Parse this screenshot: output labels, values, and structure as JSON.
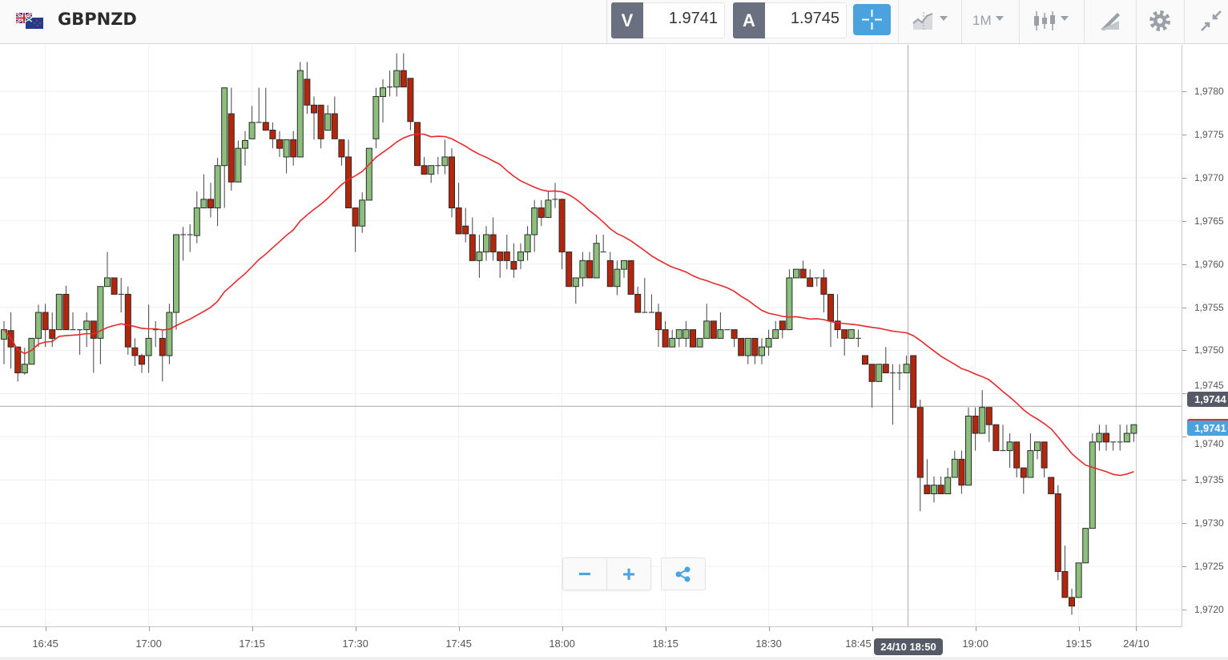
{
  "header": {
    "symbol": "GBPNZD",
    "sell": {
      "label": "V",
      "price": "1.9741"
    },
    "buy": {
      "label": "A",
      "price": "1.9745"
    },
    "timeframe": "1M",
    "icons": [
      "gb-nz-flag-icon",
      "crosshair-icon",
      "chart-type-icon",
      "candlestick-icon",
      "drawing-tools-icon",
      "gear-icon",
      "collapse-icon"
    ]
  },
  "price_axis": {
    "labels": [
      "1,9780",
      "1,9775",
      "1,9770",
      "1,9765",
      "1,9760",
      "1,9755",
      "1,9750",
      "1,9745",
      "1,9740",
      "1,9735",
      "1,9730",
      "1,9725",
      "1,9720"
    ],
    "crosshair_label": "1,9744",
    "current_price_label": "1,9741"
  },
  "time_axis": {
    "ticks": [
      {
        "time": "16:45",
        "label": "16:45"
      },
      {
        "time": "17:00",
        "label": "17:00"
      },
      {
        "time": "17:15",
        "label": "17:15"
      },
      {
        "time": "17:30",
        "label": "17:30"
      },
      {
        "time": "17:45",
        "label": "17:45"
      },
      {
        "time": "18:00",
        "label": "18:00"
      },
      {
        "time": "18:15",
        "label": "18:15"
      },
      {
        "time": "18:30",
        "label": "18:30"
      },
      {
        "time": "18:45",
        "label": "18:45"
      },
      {
        "time": "19:00",
        "label": "19:00"
      },
      {
        "time": "19:15",
        "label": "19:15"
      },
      {
        "time": "19:23",
        "label": "24/10"
      }
    ],
    "crosshair_label": "24/10 18:50"
  },
  "controls": {
    "zoom_out": "−",
    "zoom_in": "+",
    "share_icon": "share-icon"
  },
  "colors": {
    "up": "#8dbf7c",
    "down": "#b3260c",
    "ma": "#e8282b",
    "accent": "#4aa3df",
    "crosshair_badge": "#565a66",
    "current_badge": "#4aa3df"
  },
  "chart_data": {
    "type": "candlestick",
    "symbol": "GBPNZD",
    "interval": "1M",
    "ylim": [
      1.9715,
      1.9786
    ],
    "grid": true,
    "crosshair": {
      "time": "18:50",
      "price": 1.9744
    },
    "current_price": 1.9741,
    "overlay": {
      "type": "moving-average",
      "color": "#e8282b"
    },
    "columns": [
      "time",
      "open",
      "high",
      "low",
      "close"
    ],
    "candles": [
      [
        "16:39",
        1.97513,
        1.97534,
        1.97484,
        1.97524
      ],
      [
        "16:40",
        1.97523,
        1.97544,
        1.97479,
        1.97504
      ],
      [
        "16:41",
        1.97504,
        1.97504,
        1.97464,
        1.97474
      ],
      [
        "16:42",
        1.97474,
        1.97503,
        1.97472,
        1.97484
      ],
      [
        "16:43",
        1.97484,
        1.97514,
        1.97484,
        1.97514
      ],
      [
        "16:44",
        1.97514,
        1.97553,
        1.97504,
        1.97544
      ],
      [
        "16:45",
        1.97544,
        1.97554,
        1.97504,
        1.97524
      ],
      [
        "16:46",
        1.97524,
        1.97544,
        1.97504,
        1.97514
      ],
      [
        "16:47",
        1.97524,
        1.97565,
        1.97524,
        1.97565
      ],
      [
        "16:48",
        1.97565,
        1.97575,
        1.97524,
        1.97524
      ],
      [
        "16:49",
        1.97524,
        1.97544,
        1.97524,
        1.97524
      ],
      [
        "16:50",
        1.97524,
        1.97524,
        1.97495,
        1.97524
      ],
      [
        "16:51",
        1.97524,
        1.97544,
        1.97504,
        1.97534
      ],
      [
        "16:52",
        1.97534,
        1.97534,
        1.97474,
        1.97514
      ],
      [
        "16:53",
        1.97514,
        1.97574,
        1.97484,
        1.97574
      ],
      [
        "16:54",
        1.97574,
        1.97614,
        1.97574,
        1.97584
      ],
      [
        "16:55",
        1.97584,
        1.97584,
        1.97565,
        1.97565
      ],
      [
        "16:56",
        1.97565,
        1.97584,
        1.97544,
        1.97565
      ],
      [
        "16:57",
        1.97565,
        1.97574,
        1.97495,
        1.97504
      ],
      [
        "16:58",
        1.97503,
        1.97514,
        1.97482,
        1.97494
      ],
      [
        "16:59",
        1.97494,
        1.97496,
        1.97474,
        1.97484
      ],
      [
        "17:00",
        1.97494,
        1.97553,
        1.97474,
        1.97514
      ],
      [
        "17:01",
        1.97524,
        1.97534,
        1.97504,
        1.97524
      ],
      [
        "17:02",
        1.97514,
        1.97523,
        1.97464,
        1.97494
      ],
      [
        "17:03",
        1.97494,
        1.97554,
        1.97484,
        1.97544
      ],
      [
        "17:04",
        1.97544,
        1.97634,
        1.97524,
        1.97634
      ],
      [
        "17:05",
        1.97634,
        1.97643,
        1.97604,
        1.97634
      ],
      [
        "17:06",
        1.97634,
        1.97646,
        1.97614,
        1.97634
      ],
      [
        "17:07",
        1.97633,
        1.97684,
        1.97624,
        1.97665
      ],
      [
        "17:08",
        1.97665,
        1.97704,
        1.97665,
        1.97675
      ],
      [
        "17:09",
        1.97675,
        1.97694,
        1.97654,
        1.97665
      ],
      [
        "17:10",
        1.97665,
        1.97723,
        1.97644,
        1.97714
      ],
      [
        "17:11",
        1.97714,
        1.97804,
        1.97665,
        1.97804
      ],
      [
        "17:12",
        1.97774,
        1.97804,
        1.97685,
        1.97695
      ],
      [
        "17:13",
        1.97695,
        1.97743,
        1.97695,
        1.97734
      ],
      [
        "17:14",
        1.97734,
        1.97754,
        1.97714,
        1.97743
      ],
      [
        "17:15",
        1.97745,
        1.97783,
        1.97745,
        1.97764
      ],
      [
        "17:16",
        1.97764,
        1.97804,
        1.97764,
        1.97764
      ],
      [
        "17:17",
        1.97764,
        1.97804,
        1.97755,
        1.97755
      ],
      [
        "17:18",
        1.97755,
        1.97764,
        1.97734,
        1.97745
      ],
      [
        "17:19",
        1.97744,
        1.97754,
        1.97724,
        1.97734
      ],
      [
        "17:20",
        1.97724,
        1.97744,
        1.97705,
        1.97744
      ],
      [
        "17:21",
        1.97744,
        1.97754,
        1.97714,
        1.97724
      ],
      [
        "17:22",
        1.97724,
        1.97834,
        1.97724,
        1.97824
      ],
      [
        "17:23",
        1.97814,
        1.97834,
        1.97774,
        1.97784
      ],
      [
        "17:24",
        1.97784,
        1.97794,
        1.97744,
        1.97775
      ],
      [
        "17:25",
        1.97784,
        1.97784,
        1.97734,
        1.97745
      ],
      [
        "17:26",
        1.97755,
        1.97784,
        1.97755,
        1.97774
      ],
      [
        "17:27",
        1.97774,
        1.97794,
        1.97745,
        1.97745
      ],
      [
        "17:28",
        1.97744,
        1.97744,
        1.97714,
        1.97724
      ],
      [
        "17:29",
        1.97724,
        1.97744,
        1.97665,
        1.97665
      ],
      [
        "17:30",
        1.97665,
        1.97665,
        1.97614,
        1.97644
      ],
      [
        "17:31",
        1.97644,
        1.97683,
        1.97636,
        1.97674
      ],
      [
        "17:32",
        1.97674,
        1.97734,
        1.97674,
        1.97734
      ],
      [
        "17:33",
        1.97745,
        1.97804,
        1.97734,
        1.97794
      ],
      [
        "17:34",
        1.97794,
        1.97814,
        1.97764,
        1.97804
      ],
      [
        "17:35",
        1.97805,
        1.97824,
        1.97794,
        1.97805
      ],
      [
        "17:36",
        1.97805,
        1.97844,
        1.97794,
        1.97824
      ],
      [
        "17:37",
        1.97824,
        1.97844,
        1.97805,
        1.97805
      ],
      [
        "17:38",
        1.97815,
        1.97815,
        1.97755,
        1.97765
      ],
      [
        "17:39",
        1.97764,
        1.97764,
        1.97714,
        1.97714
      ],
      [
        "17:40",
        1.97714,
        1.97724,
        1.97704,
        1.97704
      ],
      [
        "17:41",
        1.97704,
        1.97714,
        1.97694,
        1.97714
      ],
      [
        "17:42",
        1.97714,
        1.97724,
        1.97704,
        1.97714
      ],
      [
        "17:43",
        1.97714,
        1.97744,
        1.97704,
        1.97724
      ],
      [
        "17:44",
        1.97724,
        1.97734,
        1.97654,
        1.97665
      ],
      [
        "17:45",
        1.97665,
        1.97694,
        1.97635,
        1.97635
      ],
      [
        "17:46",
        1.97644,
        1.97665,
        1.97625,
        1.97635
      ],
      [
        "17:47",
        1.97634,
        1.97654,
        1.97604,
        1.97604
      ],
      [
        "17:48",
        1.97604,
        1.97634,
        1.97584,
        1.97614
      ],
      [
        "17:49",
        1.97614,
        1.97644,
        1.97604,
        1.97634
      ],
      [
        "17:50",
        1.97634,
        1.97654,
        1.97604,
        1.97614
      ],
      [
        "17:51",
        1.97614,
        1.97614,
        1.97584,
        1.97604
      ],
      [
        "17:52",
        1.97614,
        1.97634,
        1.97594,
        1.97604
      ],
      [
        "17:53",
        1.97603,
        1.97624,
        1.97584,
        1.97594
      ],
      [
        "17:54",
        1.97604,
        1.97624,
        1.97594,
        1.97614
      ],
      [
        "17:55",
        1.97614,
        1.97644,
        1.97604,
        1.97634
      ],
      [
        "17:56",
        1.97634,
        1.97674,
        1.97614,
        1.97665
      ],
      [
        "17:57",
        1.97665,
        1.97674,
        1.97644,
        1.97654
      ],
      [
        "17:58",
        1.97654,
        1.97684,
        1.97654,
        1.97674
      ],
      [
        "17:59",
        1.97675,
        1.97694,
        1.97665,
        1.97675
      ],
      [
        "18:00",
        1.97675,
        1.97675,
        1.97594,
        1.97614
      ],
      [
        "18:01",
        1.97614,
        1.97614,
        1.97574,
        1.97574
      ],
      [
        "18:02",
        1.97574,
        1.97584,
        1.97554,
        1.97584
      ],
      [
        "18:03",
        1.97584,
        1.97614,
        1.97574,
        1.97604
      ],
      [
        "18:04",
        1.97604,
        1.97614,
        1.97584,
        1.97584
      ],
      [
        "18:05",
        1.97584,
        1.97634,
        1.97584,
        1.97624
      ],
      [
        "18:06",
        1.97614,
        1.97634,
        1.97614,
        1.97614
      ],
      [
        "18:07",
        1.97604,
        1.97614,
        1.97574,
        1.97574
      ],
      [
        "18:08",
        1.97574,
        1.97604,
        1.97564,
        1.97594
      ],
      [
        "18:09",
        1.97594,
        1.97604,
        1.97584,
        1.97604
      ],
      [
        "18:10",
        1.97604,
        1.97604,
        1.97565,
        1.97565
      ],
      [
        "18:11",
        1.97565,
        1.97574,
        1.97544,
        1.97544
      ],
      [
        "18:12",
        1.97544,
        1.97584,
        1.97544,
        1.97544
      ],
      [
        "18:13",
        1.97544,
        1.97565,
        1.97544,
        1.97544
      ],
      [
        "18:14",
        1.97544,
        1.97554,
        1.97504,
        1.97524
      ],
      [
        "18:15",
        1.97524,
        1.97534,
        1.97504,
        1.97504
      ],
      [
        "18:16",
        1.97504,
        1.97524,
        1.97504,
        1.97514
      ],
      [
        "18:17",
        1.97514,
        1.97524,
        1.97504,
        1.97524
      ],
      [
        "18:18",
        1.97514,
        1.97534,
        1.97504,
        1.97524
      ],
      [
        "18:19",
        1.97524,
        1.97524,
        1.97504,
        1.97504
      ],
      [
        "18:20",
        1.97504,
        1.97514,
        1.97504,
        1.97514
      ],
      [
        "18:21",
        1.97514,
        1.97554,
        1.97514,
        1.97534
      ],
      [
        "18:22",
        1.97534,
        1.97534,
        1.97514,
        1.97514
      ],
      [
        "18:23",
        1.97514,
        1.97544,
        1.97514,
        1.97524
      ],
      [
        "18:24",
        1.97524,
        1.97524,
        1.97524,
        1.97524
      ],
      [
        "18:25",
        1.97524,
        1.97524,
        1.97504,
        1.97514
      ],
      [
        "18:26",
        1.97514,
        1.97514,
        1.97494,
        1.97494
      ],
      [
        "18:27",
        1.97494,
        1.97514,
        1.97484,
        1.97514
      ],
      [
        "18:28",
        1.97514,
        1.97514,
        1.97484,
        1.97494
      ],
      [
        "18:29",
        1.97494,
        1.97514,
        1.97484,
        1.97504
      ],
      [
        "18:30",
        1.97504,
        1.97524,
        1.97494,
        1.97514
      ],
      [
        "18:31",
        1.97514,
        1.97534,
        1.97514,
        1.97524
      ],
      [
        "18:32",
        1.97534,
        1.97534,
        1.97514,
        1.97524
      ],
      [
        "18:33",
        1.97524,
        1.97594,
        1.97524,
        1.97584
      ],
      [
        "18:34",
        1.97584,
        1.97594,
        1.97584,
        1.97594
      ],
      [
        "18:35",
        1.97594,
        1.97604,
        1.97584,
        1.97584
      ],
      [
        "18:36",
        1.97584,
        1.97594,
        1.97574,
        1.97574
      ],
      [
        "18:37",
        1.97584,
        1.97584,
        1.97574,
        1.97584
      ],
      [
        "18:38",
        1.97584,
        1.97594,
        1.97544,
        1.97565
      ],
      [
        "18:39",
        1.97565,
        1.97565,
        1.97504,
        1.97534
      ],
      [
        "18:40",
        1.97534,
        1.97565,
        1.97514,
        1.97524
      ],
      [
        "18:41",
        1.97524,
        1.97524,
        1.97494,
        1.97514
      ],
      [
        "18:42",
        1.97514,
        1.97524,
        1.97514,
        1.97524
      ],
      [
        "18:43",
        1.97514,
        1.97524,
        1.97504,
        1.97514
      ],
      [
        "18:44",
        1.97494,
        1.97494,
        1.97484,
        1.97484
      ],
      [
        "18:45",
        1.97484,
        1.97484,
        1.97434,
        1.97464
      ],
      [
        "18:46",
        1.97464,
        1.97484,
        1.97464,
        1.97484
      ],
      [
        "18:47",
        1.97484,
        1.97504,
        1.97474,
        1.97474
      ],
      [
        "18:48",
        1.97474,
        1.97484,
        1.97414,
        1.97474
      ],
      [
        "18:49",
        1.97474,
        1.97484,
        1.97454,
        1.97474
      ],
      [
        "18:50",
        1.97474,
        1.97494,
        1.97474,
        1.97484
      ],
      [
        "18:51",
        1.97494,
        1.97494,
        1.97434,
        1.97434
      ],
      [
        "18:52",
        1.97434,
        1.97443,
        1.97314,
        1.97353
      ],
      [
        "18:53",
        1.97344,
        1.97374,
        1.97334,
        1.97334
      ],
      [
        "18:54",
        1.97334,
        1.97354,
        1.97324,
        1.97344
      ],
      [
        "18:55",
        1.97344,
        1.97354,
        1.97334,
        1.97334
      ],
      [
        "18:56",
        1.97334,
        1.97364,
        1.97334,
        1.97353
      ],
      [
        "18:57",
        1.97353,
        1.97384,
        1.97353,
        1.97374
      ],
      [
        "18:58",
        1.97374,
        1.97384,
        1.97334,
        1.97344
      ],
      [
        "18:59",
        1.97344,
        1.97434,
        1.97344,
        1.97424
      ],
      [
        "19:00",
        1.97424,
        1.97434,
        1.97384,
        1.97404
      ],
      [
        "19:01",
        1.97404,
        1.97454,
        1.97404,
        1.97434
      ],
      [
        "19:02",
        1.97434,
        1.97434,
        1.97394,
        1.97414
      ],
      [
        "19:03",
        1.97414,
        1.97414,
        1.97384,
        1.97384
      ],
      [
        "19:04",
        1.97384,
        1.97414,
        1.97384,
        1.97384
      ],
      [
        "19:05",
        1.97384,
        1.97404,
        1.97364,
        1.97394
      ],
      [
        "19:06",
        1.97394,
        1.97394,
        1.97353,
        1.97364
      ],
      [
        "19:07",
        1.97364,
        1.97364,
        1.97334,
        1.97353
      ],
      [
        "19:08",
        1.97353,
        1.97404,
        1.97353,
        1.97384
      ],
      [
        "19:09",
        1.97384,
        1.97394,
        1.97374,
        1.97394
      ],
      [
        "19:10",
        1.97394,
        1.97394,
        1.97353,
        1.97364
      ],
      [
        "19:11",
        1.97353,
        1.97353,
        1.97334,
        1.97334
      ],
      [
        "19:12",
        1.97334,
        1.97344,
        1.97234,
        1.97244
      ],
      [
        "19:13",
        1.97244,
        1.97274,
        1.97214,
        1.97214
      ],
      [
        "19:14",
        1.97214,
        1.97224,
        1.97194,
        1.97204
      ],
      [
        "19:15",
        1.97214,
        1.97254,
        1.97214,
        1.97254
      ],
      [
        "19:16",
        1.97254,
        1.97294,
        1.97254,
        1.97294
      ],
      [
        "19:17",
        1.97294,
        1.97404,
        1.97294,
        1.97394
      ],
      [
        "19:18",
        1.97394,
        1.97414,
        1.97384,
        1.97404
      ],
      [
        "19:19",
        1.97404,
        1.97414,
        1.97384,
        1.97394
      ],
      [
        "19:20",
        1.97394,
        1.97394,
        1.97384,
        1.97394
      ],
      [
        "19:21",
        1.97394,
        1.97414,
        1.97384,
        1.97394
      ],
      [
        "19:22",
        1.97394,
        1.97414,
        1.97394,
        1.97404
      ],
      [
        "19:23",
        1.97404,
        1.97414,
        1.97394,
        1.97414
      ]
    ]
  }
}
